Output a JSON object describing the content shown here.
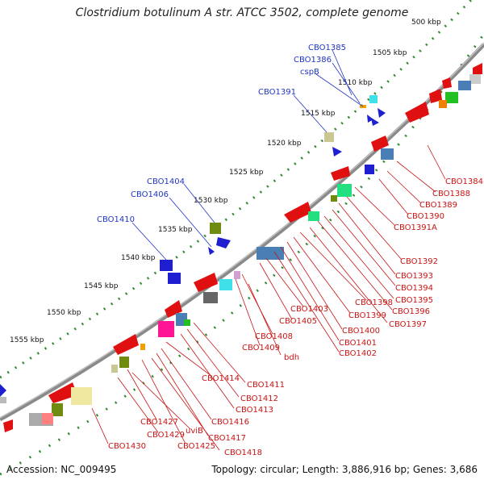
{
  "title": "Clostridium botulinum A str. ATCC 3502, complete genome",
  "footer": {
    "accession": "Accession: NC_009495",
    "summary": "Topology: circular; Length: 3,886,916 bp; Genes: 3,686"
  },
  "scale_labels": [
    "500 kbp",
    "1505 kbp",
    "1510 kbp",
    "1515 kbp",
    "1520 kbp",
    "1525 kbp",
    "1530 kbp",
    "1535 kbp",
    "1540 kbp",
    "1545 kbp",
    "1550 kbp",
    "1555 kbp"
  ],
  "outer_labels": [
    "CBO1385",
    "CBO1386",
    "cspB",
    "CBO1391",
    "CBO1404",
    "CBO1406",
    "CBO1410"
  ],
  "inner_labels": [
    "CBO1384",
    "CBO1388",
    "CBO1389",
    "CBO1390",
    "CBO1391A",
    "CBO1392",
    "CBO1393",
    "CBO1394",
    "CBO1395",
    "CBO1396",
    "CBO1397",
    "CBO1398",
    "CBO1399",
    "CBO1400",
    "CBO1401",
    "CBO1402",
    "CBO1403",
    "CBO1405",
    "CBO1408",
    "CBO1409",
    "bdh",
    "CBO1411",
    "CBO1412",
    "CBO1413",
    "CBO1414",
    "CBO1416",
    "CBO1417",
    "CBO1418",
    "CBO1425",
    "CBO1427",
    "uviB",
    "CBO1429",
    "CBO1430"
  ],
  "colors": {
    "backbone": "#8a8a8a",
    "forward_gene": "#1f1fd1",
    "reverse_gene": "#e01010",
    "outer_label": "#1f35c4",
    "inner_label": "#c81414",
    "ticks": "#2e8b2e"
  }
}
